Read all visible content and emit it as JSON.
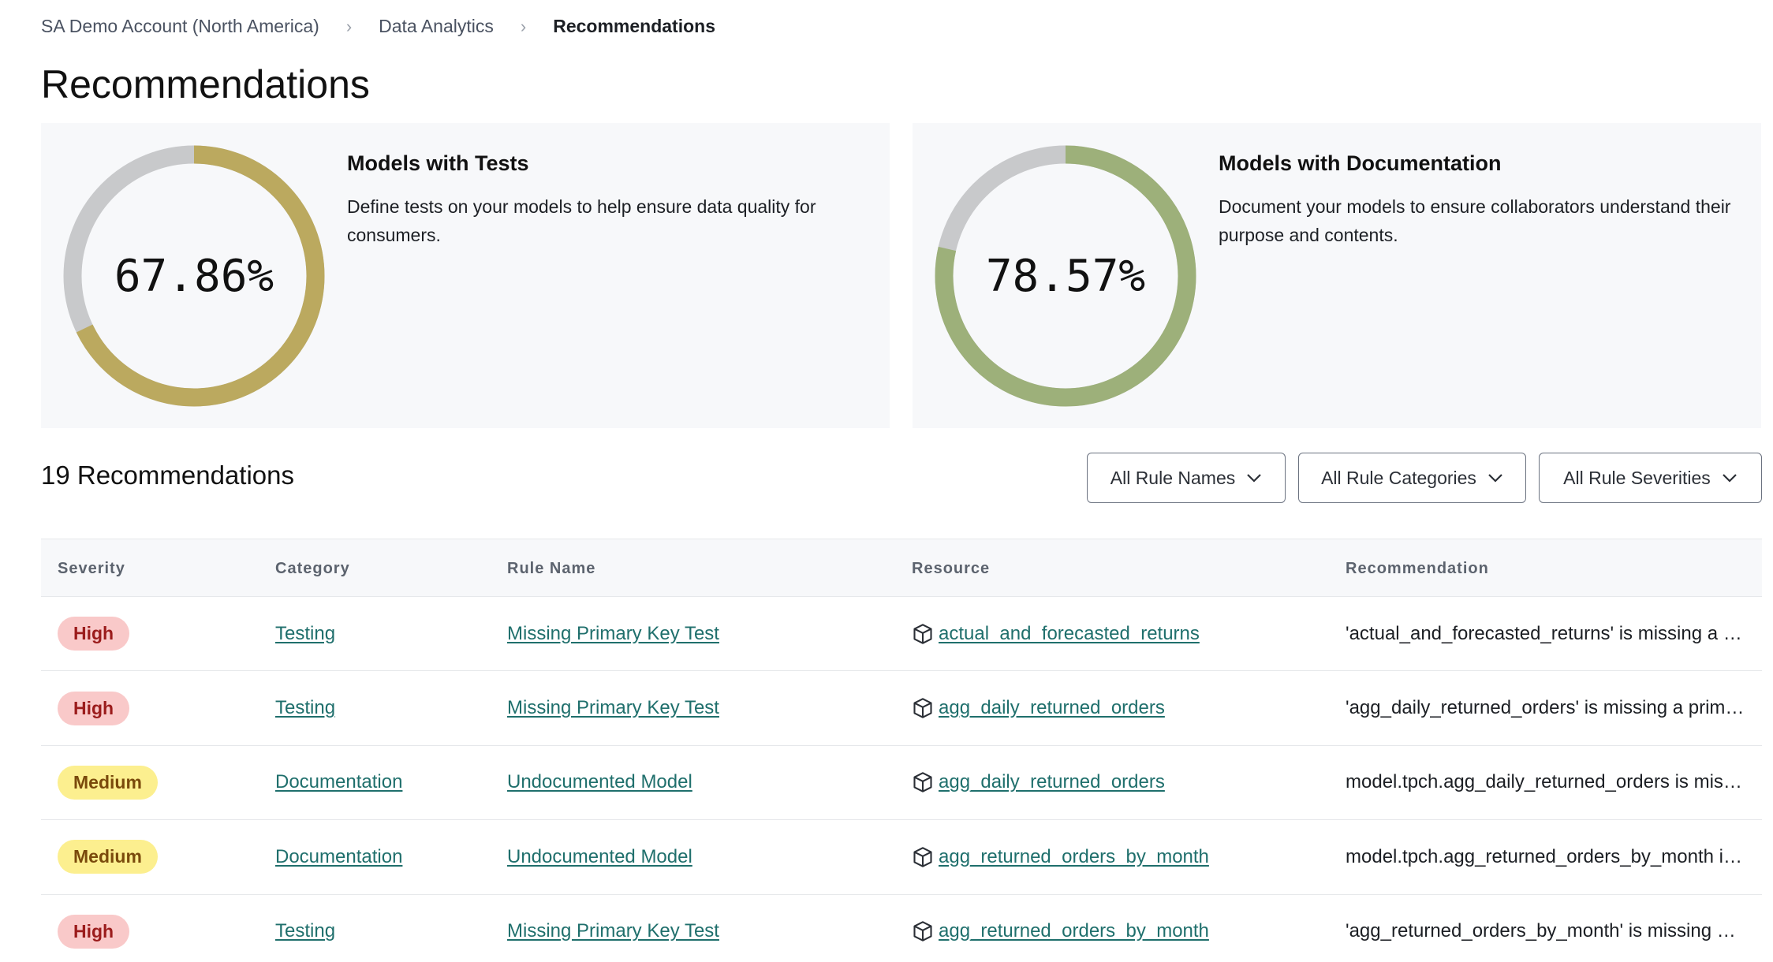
{
  "breadcrumb": [
    "SA Demo Account (North America)",
    "Data Analytics",
    "Recommendations"
  ],
  "page_title": "Recommendations",
  "colors": {
    "tests_ring": "#bba95f",
    "docs_ring": "#9db07a",
    "ring_track": "#c8c9cb",
    "link": "#1f6f6c"
  },
  "cards": [
    {
      "title": "Models with Tests",
      "description": "Define tests on your models to help ensure data quality for consumers.",
      "percent_label": "67.86%",
      "percent": 67.86
    },
    {
      "title": "Models with Documentation",
      "description": "Document your models to ensure collaborators understand their purpose and contents.",
      "percent_label": "78.57%",
      "percent": 78.57
    }
  ],
  "recommendations_count_label": "19 Recommendations",
  "filters": [
    "All Rule Names",
    "All Rule Categories",
    "All Rule Severities"
  ],
  "table": {
    "columns": [
      "Severity",
      "Category",
      "Rule Name",
      "Resource",
      "Recommendation"
    ],
    "rows": [
      {
        "severity": "High",
        "category": "Testing",
        "rule": "Missing Primary Key Test",
        "resource": "actual_and_forecasted_returns",
        "recommendation": "'actual_and_forecasted_returns' is missing a primary key test"
      },
      {
        "severity": "High",
        "category": "Testing",
        "rule": "Missing Primary Key Test",
        "resource": "agg_daily_returned_orders",
        "recommendation": "'agg_daily_returned_orders' is missing a primary key test"
      },
      {
        "severity": "Medium",
        "category": "Documentation",
        "rule": "Undocumented Model",
        "resource": "agg_daily_returned_orders",
        "recommendation": "model.tpch.agg_daily_returned_orders is missing documentation"
      },
      {
        "severity": "Medium",
        "category": "Documentation",
        "rule": "Undocumented Model",
        "resource": "agg_returned_orders_by_month",
        "recommendation": "model.tpch.agg_returned_orders_by_month is missing documentation"
      },
      {
        "severity": "High",
        "category": "Testing",
        "rule": "Missing Primary Key Test",
        "resource": "agg_returned_orders_by_month",
        "recommendation": "'agg_returned_orders_by_month' is missing a primary key test"
      }
    ]
  }
}
